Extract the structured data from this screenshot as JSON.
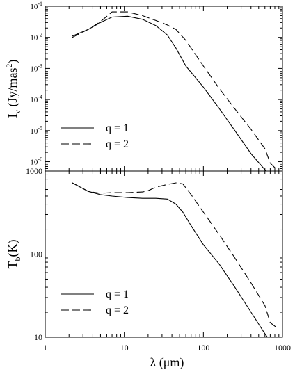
{
  "figure": {
    "xlabel": "λ (μm)"
  },
  "chart_data": [
    {
      "type": "line",
      "scale": {
        "x": "log",
        "y": "log"
      },
      "xlim": [
        1,
        1000
      ],
      "ylim": [
        5e-07,
        0.1
      ],
      "ylabel": {
        "base": "I",
        "sub": "ν",
        "unit": " (Jy/mas",
        "sup": "2",
        "close": ")"
      },
      "yticks": [
        {
          "value": 1e-06,
          "base": "10",
          "exp": "-6"
        },
        {
          "value": 1e-05,
          "base": "10",
          "exp": "-5"
        },
        {
          "value": 0.0001,
          "base": "10",
          "exp": "-4"
        },
        {
          "value": 0.001,
          "base": "10",
          "exp": "-3"
        },
        {
          "value": 0.01,
          "base": "10",
          "exp": "-2"
        },
        {
          "value": 0.1,
          "base": "10",
          "exp": "-1"
        }
      ],
      "legend": "lower-left",
      "series": [
        {
          "name": "q = 1",
          "style": "solid",
          "x": [
            2.2,
            3.5,
            5,
            7,
            11,
            17,
            25,
            35,
            45,
            60,
            100,
            160,
            250,
            400,
            600,
            700
          ],
          "y": [
            0.011,
            0.018,
            0.03,
            0.045,
            0.048,
            0.038,
            0.024,
            0.012,
            0.0045,
            0.0012,
            0.00025,
            5e-05,
            1e-05,
            1.8e-06,
            5.5e-07,
            3e-07
          ]
        },
        {
          "name": "q = 2",
          "style": "dashed",
          "x": [
            2.2,
            3.5,
            5,
            7,
            11,
            17,
            25,
            35,
            45,
            60,
            100,
            160,
            250,
            400,
            600,
            700,
            850
          ],
          "y": [
            0.01,
            0.018,
            0.032,
            0.066,
            0.066,
            0.05,
            0.035,
            0.025,
            0.018,
            0.008,
            0.0012,
            0.00022,
            5e-05,
            1.1e-05,
            2.6e-06,
            9e-07,
            5.5e-07
          ]
        }
      ]
    },
    {
      "type": "line",
      "scale": {
        "x": "log",
        "y": "log"
      },
      "xlim": [
        1,
        1000
      ],
      "ylim": [
        10,
        1000
      ],
      "ylabel": {
        "base": "T",
        "sub": "b",
        "unit": "(K)"
      },
      "yticks": [
        {
          "value": 10,
          "label": "10"
        },
        {
          "value": 100,
          "label": "100"
        },
        {
          "value": 1000,
          "label": "1000"
        }
      ],
      "xticks": [
        {
          "value": 1,
          "label": "1"
        },
        {
          "value": 10,
          "label": "10"
        },
        {
          "value": 100,
          "label": "100"
        },
        {
          "value": 1000,
          "label": "1000"
        }
      ],
      "legend": "lower-left",
      "series": [
        {
          "name": "q = 1",
          "style": "solid",
          "x": [
            2.2,
            3.5,
            5,
            7,
            11,
            17,
            25,
            35,
            45,
            55,
            70,
            100,
            160,
            250,
            400,
            600,
            700
          ],
          "y": [
            720,
            570,
            520,
            500,
            480,
            470,
            470,
            460,
            400,
            320,
            220,
            130,
            75,
            40,
            20,
            11,
            9
          ]
        },
        {
          "name": "q = 2",
          "style": "dashed",
          "x": [
            2.2,
            3.5,
            5,
            7,
            11,
            17,
            20,
            25,
            35,
            45,
            55,
            70,
            100,
            160,
            250,
            400,
            600,
            700,
            850
          ],
          "y": [
            720,
            570,
            540,
            550,
            550,
            560,
            580,
            640,
            690,
            720,
            700,
            520,
            320,
            170,
            90,
            45,
            24,
            15,
            13
          ]
        }
      ]
    }
  ]
}
